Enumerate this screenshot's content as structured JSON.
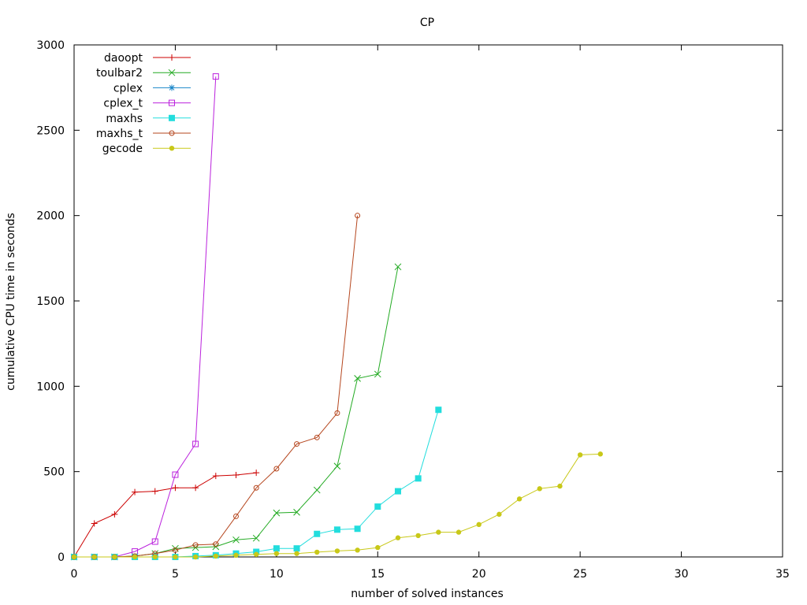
{
  "chart_data": {
    "type": "line",
    "title": "CP",
    "xlabel": "number of solved instances",
    "ylabel": "cumulative CPU time in seconds",
    "xlim": [
      0,
      35
    ],
    "ylim": [
      0,
      3000
    ],
    "xticks": [
      0,
      5,
      10,
      15,
      20,
      25,
      30,
      35
    ],
    "yticks": [
      0,
      500,
      1000,
      1500,
      2000,
      2500,
      3000
    ],
    "grid": false,
    "legend_position": "top-left",
    "series": [
      {
        "name": "daoopt",
        "color": "#cc0000",
        "marker": "plus",
        "x": [
          0,
          1,
          2,
          3,
          4,
          5,
          6,
          7,
          8,
          9
        ],
        "y": [
          0,
          196,
          250,
          380,
          385,
          405,
          405,
          475,
          480,
          493
        ]
      },
      {
        "name": "toulbar2",
        "color": "#22aa22",
        "marker": "cross",
        "x": [
          0,
          1,
          2,
          3,
          4,
          5,
          6,
          7,
          8,
          9,
          10,
          11,
          12,
          13,
          14,
          15,
          16
        ],
        "y": [
          0,
          0,
          0,
          5,
          20,
          50,
          55,
          60,
          100,
          110,
          258,
          262,
          392,
          532,
          1046,
          1071,
          1700
        ]
      },
      {
        "name": "cplex",
        "color": "#1a86c8",
        "marker": "star",
        "x": [],
        "y": []
      },
      {
        "name": "cplex_t",
        "color": "#bb22dd",
        "marker": "square-open",
        "x": [
          0,
          1,
          2,
          3,
          4,
          5,
          6,
          7
        ],
        "y": [
          0,
          0,
          0,
          32,
          90,
          482,
          662,
          2815
        ]
      },
      {
        "name": "maxhs",
        "color": "#22dddd",
        "marker": "square-filled",
        "x": [
          0,
          1,
          2,
          3,
          4,
          5,
          6,
          7,
          8,
          9,
          10,
          11,
          12,
          13,
          14,
          15,
          16,
          17,
          18
        ],
        "y": [
          0,
          0,
          0,
          0,
          0,
          0,
          5,
          10,
          20,
          30,
          50,
          50,
          135,
          160,
          165,
          295,
          385,
          460,
          862
        ]
      },
      {
        "name": "maxhs_t",
        "color": "#b5461e",
        "marker": "circle-open",
        "x": [
          0,
          1,
          2,
          3,
          4,
          5,
          6,
          7,
          8,
          9,
          10,
          11,
          12,
          13,
          14
        ],
        "y": [
          0,
          0,
          0,
          5,
          20,
          40,
          70,
          75,
          238,
          405,
          517,
          662,
          700,
          843,
          2000
        ]
      },
      {
        "name": "gecode",
        "color": "#c8c818",
        "marker": "circle-filled",
        "x": [
          0,
          1,
          2,
          3,
          4,
          5,
          6,
          7,
          8,
          9,
          10,
          11,
          12,
          13,
          14,
          15,
          16,
          17,
          18,
          19,
          20,
          21,
          22,
          23,
          24,
          25,
          26
        ],
        "y": [
          0,
          0,
          0,
          0,
          0,
          0,
          0,
          5,
          10,
          15,
          20,
          20,
          28,
          35,
          40,
          55,
          112,
          125,
          145,
          145,
          190,
          250,
          340,
          400,
          415,
          598,
          603
        ]
      }
    ]
  }
}
